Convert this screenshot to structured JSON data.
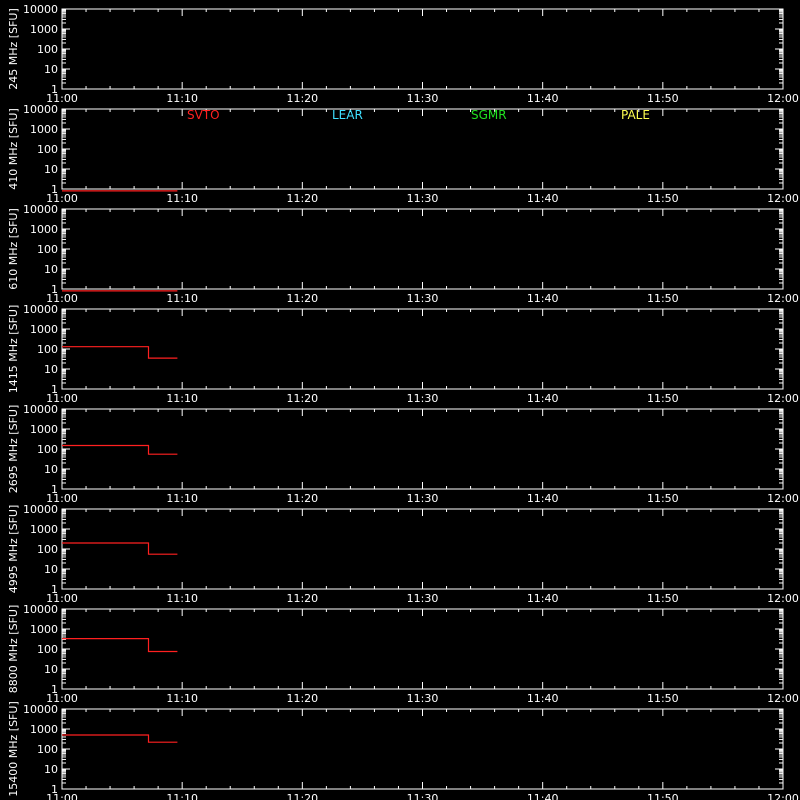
{
  "colors": {
    "background": "#000000",
    "axes": "#ffffff",
    "data": "#ff2020"
  },
  "legend": [
    {
      "label": "SVTO",
      "color": "#ff2020"
    },
    {
      "label": "LEAR",
      "color": "#3fe0ff"
    },
    {
      "label": "SGMR",
      "color": "#20e020"
    },
    {
      "label": "PALE",
      "color": "#ffff50"
    }
  ],
  "chart_data": {
    "type": "line",
    "x_ticks": [
      "11:00",
      "11:10",
      "11:20",
      "11:30",
      "11:40",
      "11:50",
      "12:00"
    ],
    "x_range_minutes": [
      0,
      60
    ],
    "y_scale": "log",
    "y_range": [
      1,
      10000
    ],
    "y_ticks": [
      "1",
      "10",
      "100",
      "1000",
      "10000"
    ],
    "panels": [
      {
        "ylabel": "245 MHz [SFU]",
        "series": []
      },
      {
        "ylabel": "410 MHz [SFU]",
        "series": [
          {
            "station": "SVTO",
            "segments": [
              {
                "x0": 0.0,
                "x1": 9.6,
                "value": 0.8
              }
            ]
          }
        ]
      },
      {
        "ylabel": "610 MHz [SFU]",
        "series": [
          {
            "station": "SVTO",
            "segments": [
              {
                "x0": 0.0,
                "x1": 9.6,
                "value": 0.8
              }
            ]
          }
        ]
      },
      {
        "ylabel": "1415 MHz [SFU]",
        "series": [
          {
            "station": "SVTO",
            "segments": [
              {
                "x0": 0.0,
                "x1": 7.2,
                "value": 130
              },
              {
                "x0": 7.2,
                "x1": 9.6,
                "value": 35
              }
            ]
          }
        ]
      },
      {
        "ylabel": "2695 MHz [SFU]",
        "series": [
          {
            "station": "SVTO",
            "segments": [
              {
                "x0": 0.0,
                "x1": 7.2,
                "value": 150
              },
              {
                "x0": 7.2,
                "x1": 9.6,
                "value": 55
              }
            ]
          }
        ]
      },
      {
        "ylabel": "4995 MHz [SFU]",
        "series": [
          {
            "station": "SVTO",
            "segments": [
              {
                "x0": 0.0,
                "x1": 7.2,
                "value": 200
              },
              {
                "x0": 7.2,
                "x1": 9.6,
                "value": 55
              }
            ]
          }
        ]
      },
      {
        "ylabel": "8800 MHz [SFU]",
        "series": [
          {
            "station": "SVTO",
            "segments": [
              {
                "x0": 0.0,
                "x1": 7.2,
                "value": 330
              },
              {
                "x0": 7.2,
                "x1": 9.6,
                "value": 75
              }
            ]
          }
        ]
      },
      {
        "ylabel": "15400 MHz [SFU]",
        "series": [
          {
            "station": "SVTO",
            "segments": [
              {
                "x0": 0.0,
                "x1": 7.2,
                "value": 500
              },
              {
                "x0": 7.2,
                "x1": 9.6,
                "value": 220
              }
            ]
          }
        ]
      }
    ]
  }
}
